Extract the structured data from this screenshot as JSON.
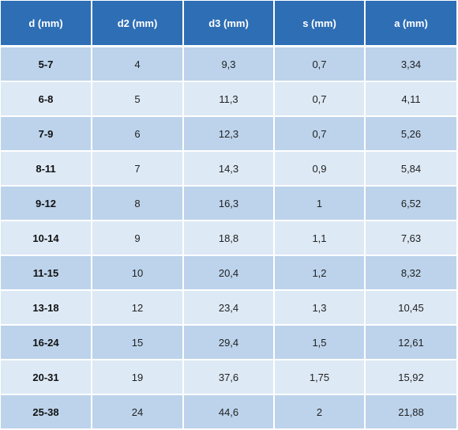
{
  "table": {
    "headers": [
      "d (mm)",
      "d2 (mm)",
      "d3 (mm)",
      "s (mm)",
      "a (mm)"
    ],
    "rows": [
      [
        "5-7",
        "4",
        "9,3",
        "0,7",
        "3,34"
      ],
      [
        "6-8",
        "5",
        "11,3",
        "0,7",
        "4,11"
      ],
      [
        "7-9",
        "6",
        "12,3",
        "0,7",
        "5,26"
      ],
      [
        "8-11",
        "7",
        "14,3",
        "0,9",
        "5,84"
      ],
      [
        "9-12",
        "8",
        "16,3",
        "1",
        "6,52"
      ],
      [
        "10-14",
        "9",
        "18,8",
        "1,1",
        "7,63"
      ],
      [
        "11-15",
        "10",
        "20,4",
        "1,2",
        "8,32"
      ],
      [
        "13-18",
        "12",
        "23,4",
        "1,3",
        "10,45"
      ],
      [
        "16-24",
        "15",
        "29,4",
        "1,5",
        "12,61"
      ],
      [
        "20-31",
        "19",
        "37,6",
        "1,75",
        "15,92"
      ],
      [
        "25-38",
        "24",
        "44,6",
        "2",
        "21,88"
      ]
    ]
  },
  "colors": {
    "header_bg": "#2e6eb5",
    "row_dark": "#bcd3eb",
    "row_light": "#dde9f5"
  }
}
